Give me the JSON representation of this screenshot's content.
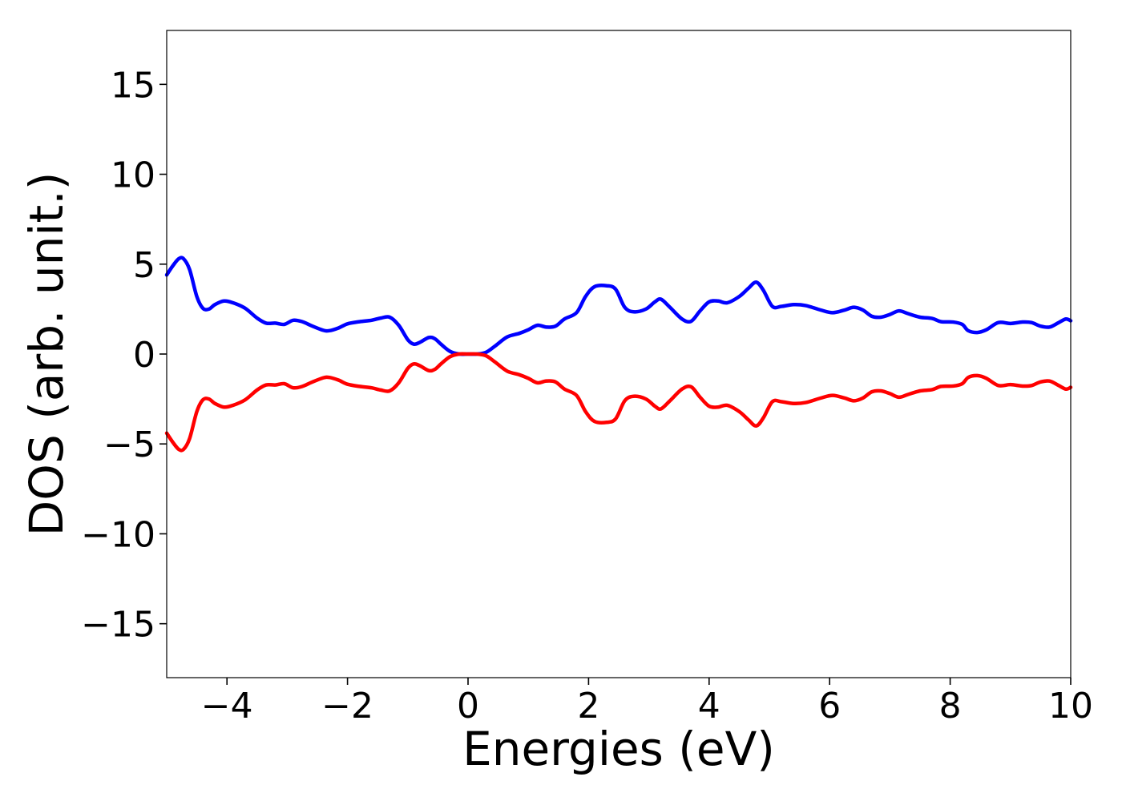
{
  "chart_data": {
    "type": "line",
    "xlabel": "Energies (eV)",
    "ylabel": "DOS (arb. unit.)",
    "xlim": [
      -5,
      10
    ],
    "ylim": [
      -18,
      18
    ],
    "grid": false,
    "x_ticks": [
      -4,
      -2,
      0,
      2,
      4,
      6,
      8,
      10
    ],
    "y_ticks": [
      -15,
      -10,
      -5,
      0,
      5,
      10,
      15
    ],
    "x_tick_labels": [
      "−4",
      "−2",
      "0",
      "2",
      "4",
      "6",
      "8",
      "10"
    ],
    "y_tick_labels": [
      "−15",
      "−10",
      "−5",
      "0",
      "5",
      "10",
      "15"
    ],
    "series": [
      {
        "color": "#0000ff",
        "points": [
          [
            -5.0,
            4.4
          ],
          [
            -4.9,
            4.9
          ],
          [
            -4.8,
            5.3
          ],
          [
            -4.72,
            5.3
          ],
          [
            -4.62,
            4.7
          ],
          [
            -4.5,
            3.2
          ],
          [
            -4.4,
            2.55
          ],
          [
            -4.3,
            2.5
          ],
          [
            -4.2,
            2.75
          ],
          [
            -4.05,
            2.95
          ],
          [
            -3.9,
            2.85
          ],
          [
            -3.7,
            2.55
          ],
          [
            -3.5,
            2.0
          ],
          [
            -3.35,
            1.72
          ],
          [
            -3.2,
            1.72
          ],
          [
            -3.05,
            1.65
          ],
          [
            -2.9,
            1.88
          ],
          [
            -2.75,
            1.8
          ],
          [
            -2.6,
            1.58
          ],
          [
            -2.4,
            1.32
          ],
          [
            -2.3,
            1.3
          ],
          [
            -2.15,
            1.45
          ],
          [
            -2.0,
            1.68
          ],
          [
            -1.8,
            1.8
          ],
          [
            -1.6,
            1.88
          ],
          [
            -1.45,
            2.0
          ],
          [
            -1.3,
            2.05
          ],
          [
            -1.15,
            1.6
          ],
          [
            -1.0,
            0.8
          ],
          [
            -0.9,
            0.55
          ],
          [
            -0.8,
            0.65
          ],
          [
            -0.65,
            0.92
          ],
          [
            -0.55,
            0.85
          ],
          [
            -0.45,
            0.55
          ],
          [
            -0.3,
            0.15
          ],
          [
            -0.15,
            0.0
          ],
          [
            0.0,
            0.0
          ],
          [
            0.15,
            0.0
          ],
          [
            0.3,
            0.1
          ],
          [
            0.45,
            0.45
          ],
          [
            0.65,
            0.95
          ],
          [
            0.85,
            1.15
          ],
          [
            1.0,
            1.35
          ],
          [
            1.15,
            1.6
          ],
          [
            1.3,
            1.5
          ],
          [
            1.45,
            1.55
          ],
          [
            1.6,
            1.95
          ],
          [
            1.8,
            2.3
          ],
          [
            1.95,
            3.2
          ],
          [
            2.1,
            3.75
          ],
          [
            2.3,
            3.8
          ],
          [
            2.45,
            3.6
          ],
          [
            2.6,
            2.6
          ],
          [
            2.75,
            2.35
          ],
          [
            2.95,
            2.5
          ],
          [
            3.1,
            2.9
          ],
          [
            3.2,
            3.05
          ],
          [
            3.35,
            2.6
          ],
          [
            3.55,
            1.95
          ],
          [
            3.7,
            1.82
          ],
          [
            3.85,
            2.4
          ],
          [
            4.0,
            2.9
          ],
          [
            4.15,
            2.95
          ],
          [
            4.3,
            2.85
          ],
          [
            4.5,
            3.2
          ],
          [
            4.65,
            3.65
          ],
          [
            4.78,
            4.0
          ],
          [
            4.9,
            3.55
          ],
          [
            5.05,
            2.65
          ],
          [
            5.2,
            2.65
          ],
          [
            5.4,
            2.75
          ],
          [
            5.6,
            2.7
          ],
          [
            5.85,
            2.45
          ],
          [
            6.05,
            2.3
          ],
          [
            6.25,
            2.45
          ],
          [
            6.4,
            2.6
          ],
          [
            6.55,
            2.45
          ],
          [
            6.7,
            2.1
          ],
          [
            6.85,
            2.05
          ],
          [
            7.0,
            2.2
          ],
          [
            7.15,
            2.4
          ],
          [
            7.3,
            2.25
          ],
          [
            7.5,
            2.05
          ],
          [
            7.7,
            1.98
          ],
          [
            7.85,
            1.8
          ],
          [
            8.05,
            1.78
          ],
          [
            8.2,
            1.65
          ],
          [
            8.3,
            1.3
          ],
          [
            8.45,
            1.2
          ],
          [
            8.6,
            1.35
          ],
          [
            8.8,
            1.75
          ],
          [
            9.0,
            1.7
          ],
          [
            9.2,
            1.78
          ],
          [
            9.35,
            1.75
          ],
          [
            9.5,
            1.55
          ],
          [
            9.65,
            1.5
          ],
          [
            9.8,
            1.75
          ],
          [
            9.92,
            1.95
          ],
          [
            10.0,
            1.85
          ]
        ]
      },
      {
        "color": "#ff0000",
        "points": [
          [
            -5.0,
            -4.4
          ],
          [
            -4.9,
            -4.9
          ],
          [
            -4.8,
            -5.3
          ],
          [
            -4.72,
            -5.3
          ],
          [
            -4.62,
            -4.7
          ],
          [
            -4.5,
            -3.2
          ],
          [
            -4.4,
            -2.55
          ],
          [
            -4.3,
            -2.5
          ],
          [
            -4.2,
            -2.75
          ],
          [
            -4.05,
            -2.95
          ],
          [
            -3.9,
            -2.85
          ],
          [
            -3.7,
            -2.55
          ],
          [
            -3.5,
            -2.0
          ],
          [
            -3.35,
            -1.72
          ],
          [
            -3.2,
            -1.72
          ],
          [
            -3.05,
            -1.65
          ],
          [
            -2.9,
            -1.88
          ],
          [
            -2.75,
            -1.8
          ],
          [
            -2.6,
            -1.58
          ],
          [
            -2.4,
            -1.32
          ],
          [
            -2.3,
            -1.3
          ],
          [
            -2.15,
            -1.45
          ],
          [
            -2.0,
            -1.68
          ],
          [
            -1.8,
            -1.8
          ],
          [
            -1.6,
            -1.88
          ],
          [
            -1.45,
            -2.0
          ],
          [
            -1.3,
            -2.05
          ],
          [
            -1.15,
            -1.6
          ],
          [
            -1.0,
            -0.8
          ],
          [
            -0.9,
            -0.55
          ],
          [
            -0.8,
            -0.65
          ],
          [
            -0.65,
            -0.92
          ],
          [
            -0.55,
            -0.85
          ],
          [
            -0.45,
            -0.55
          ],
          [
            -0.3,
            -0.15
          ],
          [
            -0.15,
            0.0
          ],
          [
            0.0,
            0.0
          ],
          [
            0.15,
            0.0
          ],
          [
            0.3,
            -0.1
          ],
          [
            0.45,
            -0.45
          ],
          [
            0.65,
            -0.95
          ],
          [
            0.85,
            -1.15
          ],
          [
            1.0,
            -1.35
          ],
          [
            1.15,
            -1.6
          ],
          [
            1.3,
            -1.5
          ],
          [
            1.45,
            -1.55
          ],
          [
            1.6,
            -1.95
          ],
          [
            1.8,
            -2.3
          ],
          [
            1.95,
            -3.2
          ],
          [
            2.1,
            -3.75
          ],
          [
            2.3,
            -3.8
          ],
          [
            2.45,
            -3.6
          ],
          [
            2.6,
            -2.6
          ],
          [
            2.75,
            -2.35
          ],
          [
            2.95,
            -2.5
          ],
          [
            3.1,
            -2.9
          ],
          [
            3.2,
            -3.05
          ],
          [
            3.35,
            -2.6
          ],
          [
            3.55,
            -1.95
          ],
          [
            3.7,
            -1.82
          ],
          [
            3.85,
            -2.4
          ],
          [
            4.0,
            -2.9
          ],
          [
            4.15,
            -2.95
          ],
          [
            4.3,
            -2.85
          ],
          [
            4.5,
            -3.2
          ],
          [
            4.65,
            -3.65
          ],
          [
            4.78,
            -4.0
          ],
          [
            4.9,
            -3.55
          ],
          [
            5.05,
            -2.65
          ],
          [
            5.2,
            -2.65
          ],
          [
            5.4,
            -2.75
          ],
          [
            5.6,
            -2.7
          ],
          [
            5.85,
            -2.45
          ],
          [
            6.05,
            -2.3
          ],
          [
            6.25,
            -2.45
          ],
          [
            6.4,
            -2.6
          ],
          [
            6.55,
            -2.45
          ],
          [
            6.7,
            -2.1
          ],
          [
            6.85,
            -2.05
          ],
          [
            7.0,
            -2.2
          ],
          [
            7.15,
            -2.4
          ],
          [
            7.3,
            -2.25
          ],
          [
            7.5,
            -2.05
          ],
          [
            7.7,
            -1.98
          ],
          [
            7.85,
            -1.8
          ],
          [
            8.05,
            -1.78
          ],
          [
            8.2,
            -1.65
          ],
          [
            8.3,
            -1.3
          ],
          [
            8.45,
            -1.2
          ],
          [
            8.6,
            -1.35
          ],
          [
            8.8,
            -1.75
          ],
          [
            9.0,
            -1.7
          ],
          [
            9.2,
            -1.78
          ],
          [
            9.35,
            -1.75
          ],
          [
            9.5,
            -1.55
          ],
          [
            9.65,
            -1.5
          ],
          [
            9.8,
            -1.75
          ],
          [
            9.92,
            -1.95
          ],
          [
            10.0,
            -1.85
          ]
        ]
      }
    ]
  }
}
